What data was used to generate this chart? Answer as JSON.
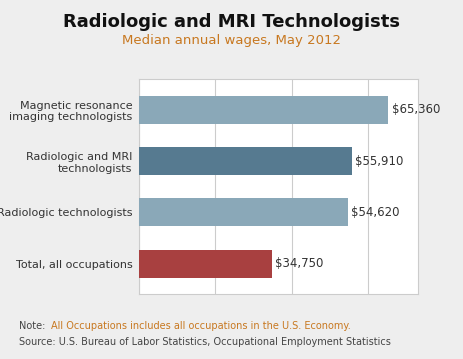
{
  "title": "Radiologic and MRI Technologists",
  "subtitle": "Median annual wages, May 2012",
  "categories": [
    "Magnetic resonance\nimaging technologists",
    "Radiologic and MRI\ntechnologists",
    "Radiologic technologists",
    "Total, all occupations"
  ],
  "values": [
    65360,
    55910,
    54620,
    34750
  ],
  "labels": [
    "$65,360",
    "$55,910",
    "$54,620",
    "$34,750"
  ],
  "bar_colors": [
    "#8aa8b8",
    "#567a90",
    "#8aa8b8",
    "#a84040"
  ],
  "xlim": [
    0,
    73000
  ],
  "bg_color": "#eeeeee",
  "plot_bg": "#ffffff",
  "title_fontsize": 13,
  "subtitle_fontsize": 9.5,
  "subtitle_color": "#c87820",
  "note_line1_pre": "Note:  ",
  "note_line1_highlight": "All Occupations includes ",
  "note_line1_normal": "all",
  "note_line1_rest": " occupations in the U.S. Economy.",
  "note_line2": "Source: U.S. Bureau of Labor Statistics, Occupational Employment Statistics",
  "note_color": "#444444",
  "note_highlight_color": "#c87820",
  "label_fontsize": 8.5,
  "ytick_fontsize": 8,
  "bar_height": 0.55,
  "grid_color": "#cccccc",
  "grid_values": [
    0,
    20000,
    40000,
    60000
  ]
}
